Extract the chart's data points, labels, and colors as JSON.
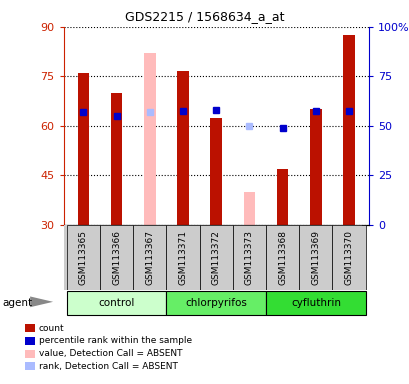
{
  "title": "GDS2215 / 1568634_a_at",
  "samples": [
    "GSM113365",
    "GSM113366",
    "GSM113367",
    "GSM113371",
    "GSM113372",
    "GSM113373",
    "GSM113368",
    "GSM113369",
    "GSM113370"
  ],
  "groups": [
    {
      "name": "control",
      "members": [
        "GSM113365",
        "GSM113366",
        "GSM113367"
      ],
      "color": "#ccffcc"
    },
    {
      "name": "chlorpyrifos",
      "members": [
        "GSM113371",
        "GSM113372",
        "GSM113373"
      ],
      "color": "#66ee66"
    },
    {
      "name": "cyfluthrin",
      "members": [
        "GSM113368",
        "GSM113369",
        "GSM113370"
      ],
      "color": "#33dd33"
    }
  ],
  "bar_data": [
    {
      "sample": "GSM113365",
      "count": 76.0,
      "rank": 57.0,
      "absent": false
    },
    {
      "sample": "GSM113366",
      "count": 70.0,
      "rank": 55.0,
      "absent": false
    },
    {
      "sample": "GSM113367",
      "count": null,
      "rank": null,
      "absent_count": 82.0,
      "absent_rank": 57.0,
      "absent": true
    },
    {
      "sample": "GSM113371",
      "count": 76.5,
      "rank": 57.5,
      "absent": false
    },
    {
      "sample": "GSM113372",
      "count": 62.5,
      "rank": 58.0,
      "absent": false
    },
    {
      "sample": "GSM113373",
      "count": null,
      "rank": null,
      "absent_count": 40.0,
      "absent_rank": 50.0,
      "absent": true
    },
    {
      "sample": "GSM113368",
      "count": 47.0,
      "rank": 49.0,
      "absent": false
    },
    {
      "sample": "GSM113369",
      "count": 65.0,
      "rank": 57.5,
      "absent": false
    },
    {
      "sample": "GSM113370",
      "count": 87.5,
      "rank": 57.5,
      "absent": false
    }
  ],
  "ylim": [
    30,
    90
  ],
  "yticks_left": [
    30,
    45,
    60,
    75,
    90
  ],
  "yticks_right": [
    0,
    25,
    50,
    75,
    100
  ],
  "yright_labels": [
    "0",
    "25",
    "50",
    "75",
    "100%"
  ],
  "left_color": "#cc2200",
  "right_color": "#0000cc",
  "bar_color_present": "#bb1100",
  "bar_color_absent": "#ffbbbb",
  "rank_color_present": "#0000cc",
  "rank_color_absent": "#aabbff",
  "legend": [
    {
      "label": "count",
      "color": "#bb1100"
    },
    {
      "label": "percentile rank within the sample",
      "color": "#0000cc"
    },
    {
      "label": "value, Detection Call = ABSENT",
      "color": "#ffbbbb"
    },
    {
      "label": "rank, Detection Call = ABSENT",
      "color": "#aabbff"
    }
  ],
  "agent_label": "agent",
  "bar_width": 0.35
}
